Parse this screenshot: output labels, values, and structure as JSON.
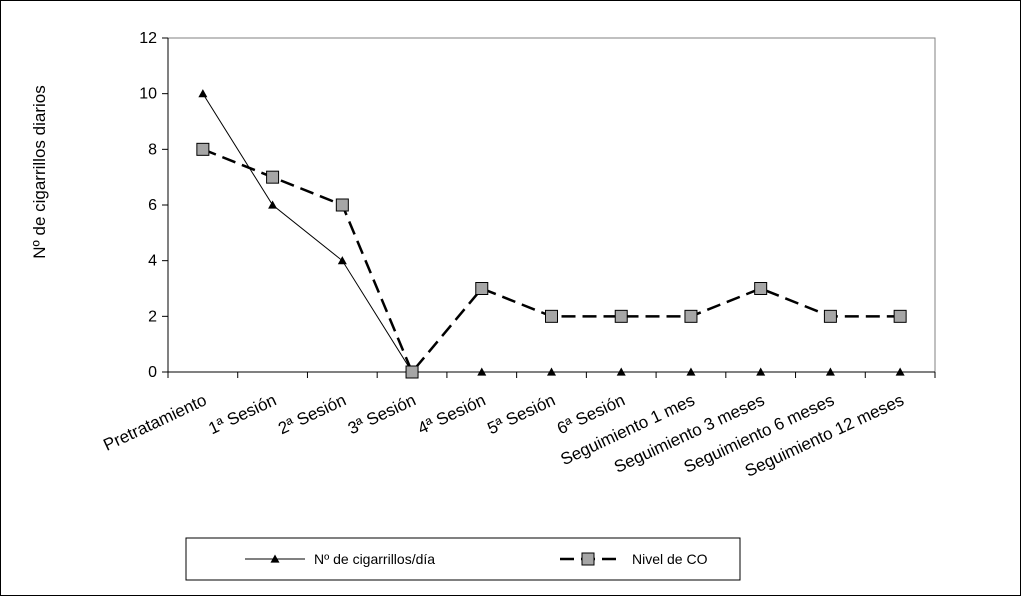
{
  "chart_data": {
    "type": "line",
    "title": "",
    "xlabel": "",
    "ylabel": "Nº de cigarrillos diarios",
    "ylim": [
      0,
      12
    ],
    "yticks": [
      0,
      2,
      4,
      6,
      8,
      10,
      12
    ],
    "grid": false,
    "legend_position": "bottom",
    "categories": [
      "Pretratamiento",
      "1ª Sesión",
      "2ª Sesión",
      "3ª Sesión",
      "4ª Sesión",
      "5ª Sesión",
      "6ª Sesión",
      "Seguimiento 1 mes",
      "Seguimiento 3 meses",
      "Seguimiento 6 meses",
      "Seguimiento 12 meses"
    ],
    "series": [
      {
        "name": "Nº de cigarrillos/día",
        "values": [
          10,
          6,
          4,
          0,
          0,
          0,
          0,
          0,
          0,
          0,
          0
        ],
        "marker": "triangle",
        "line": "solid",
        "color": "#000000"
      },
      {
        "name": "Nivel de CO",
        "values": [
          8,
          7,
          6,
          0,
          3,
          2,
          2,
          2,
          3,
          2,
          2
        ],
        "marker": "square",
        "line": "dashed",
        "color": "#000000",
        "marker_fill": "#a6a6a6"
      }
    ]
  }
}
